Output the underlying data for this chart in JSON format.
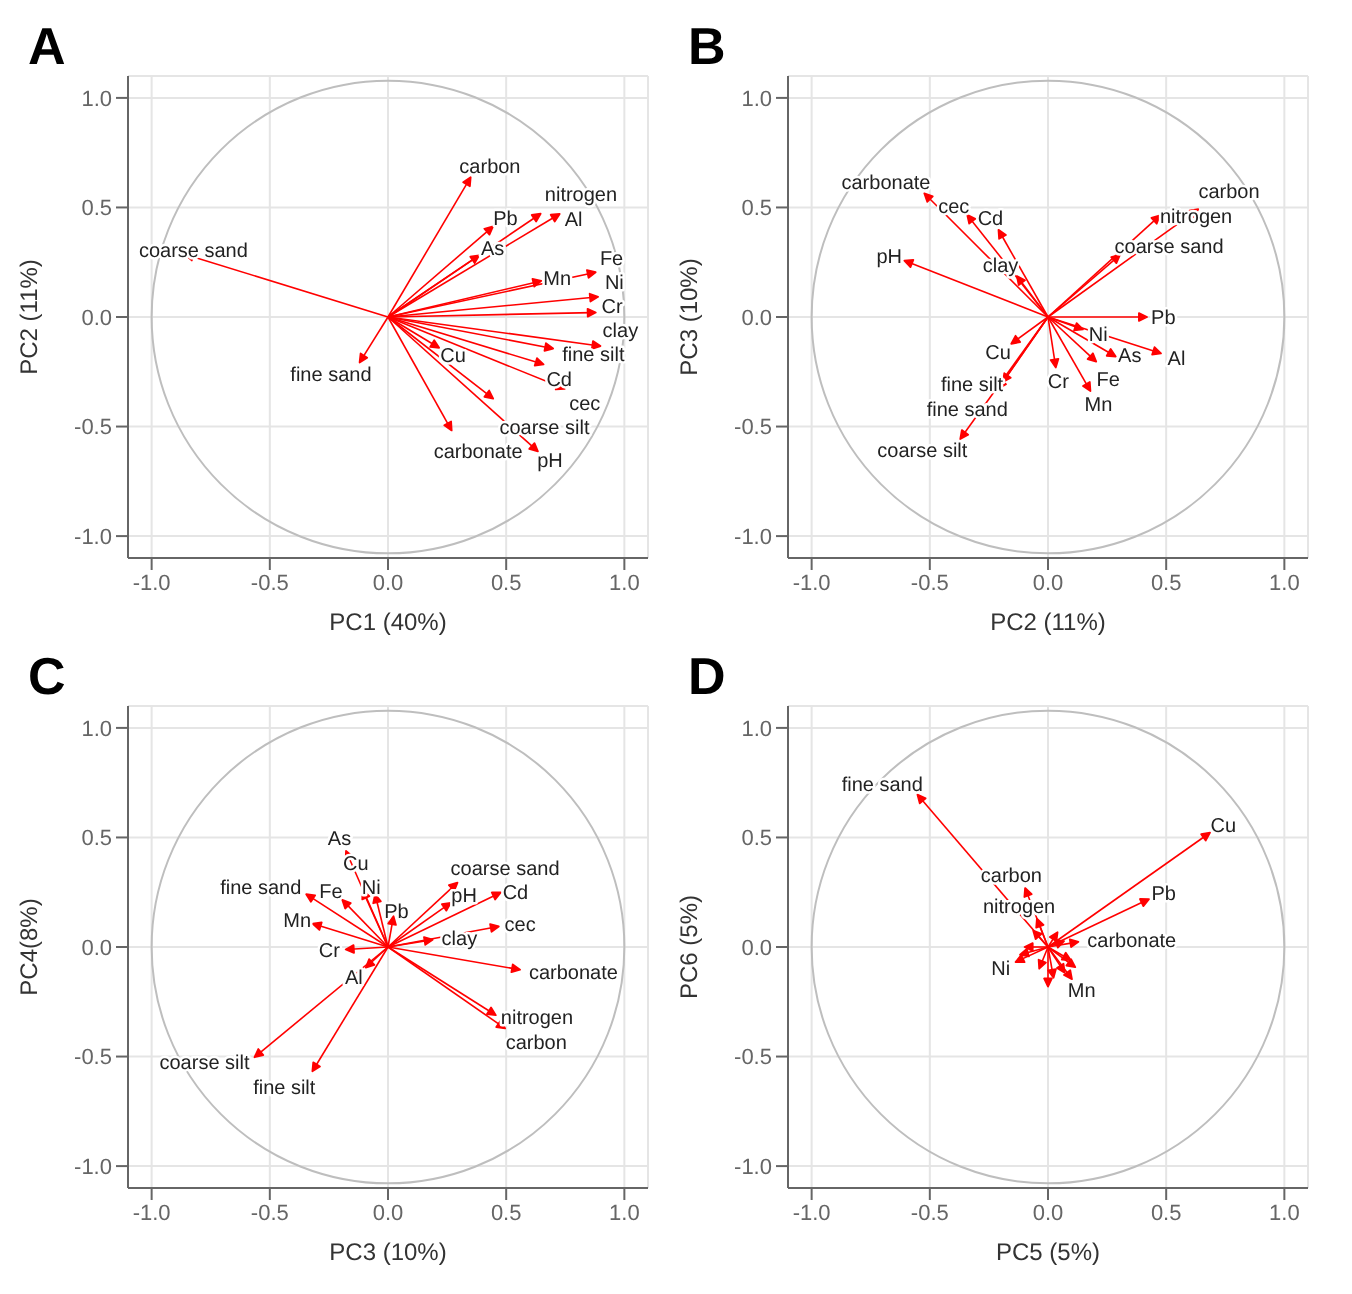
{
  "chart_data": [
    {
      "type": "scatter",
      "title": "A",
      "xlabel": "PC1 (40%)",
      "ylabel": "PC2 (11%)",
      "xlim": [
        -1.1,
        1.1
      ],
      "ylim": [
        -1.1,
        1.1
      ],
      "xticks": [
        {
          "value": -1,
          "label": "-1.0"
        },
        {
          "value": -0.5,
          "label": "-0.5"
        },
        {
          "value": 0,
          "label": "0.0"
        },
        {
          "value": 0.5,
          "label": "0.5"
        },
        {
          "value": 1,
          "label": "1.0"
        }
      ],
      "yticks": [
        {
          "value": -1,
          "label": "-1.0"
        },
        {
          "value": -0.5,
          "label": "-0.5"
        },
        {
          "value": 0,
          "label": "0.0"
        },
        {
          "value": 0.5,
          "label": "0.5"
        },
        {
          "value": 1,
          "label": "1.0"
        }
      ],
      "grid": true,
      "series": [
        {
          "color": "#ff0000",
          "x": [
            0.34,
            0.63,
            0.71,
            0.43,
            0.37,
            0.86,
            0.63,
            0.87,
            0.86,
            0.68,
            0.88,
            0.64,
            0.73,
            0.43,
            0.62,
            0.26,
            0.2,
            -0.11,
            -0.84
          ],
          "values": [
            0.62,
            0.46,
            0.46,
            0.4,
            0.27,
            0.2,
            0.16,
            0.09,
            0.02,
            -0.14,
            -0.13,
            -0.21,
            -0.32,
            -0.36,
            -0.6,
            -0.5,
            -0.13,
            -0.19,
            0.28
          ],
          "value_labels": [
            "carbon",
            "nitrogen",
            "Al",
            "Pb",
            "As",
            "Fe",
            "Mn",
            "Ni",
            "Cr",
            "fine silt",
            "clay",
            "Cd",
            "cec",
            "coarse silt",
            "pH",
            "carbonate",
            "Cu",
            "fine sand",
            "coarse sand"
          ]
        }
      ]
    },
    {
      "type": "scatter",
      "title": "B",
      "xlabel": "PC2 (11%)",
      "ylabel": "PC3 (10%)",
      "xlim": [
        -1.1,
        1.1
      ],
      "ylim": [
        -1.1,
        1.1
      ],
      "xticks": [
        {
          "value": -1,
          "label": "-1.0"
        },
        {
          "value": -0.5,
          "label": "-0.5"
        },
        {
          "value": 0,
          "label": "0.0"
        },
        {
          "value": 0.5,
          "label": "0.5"
        },
        {
          "value": 1,
          "label": "1.0"
        }
      ],
      "yticks": [
        {
          "value": -1,
          "label": "-1.0"
        },
        {
          "value": -0.5,
          "label": "-0.5"
        },
        {
          "value": 0,
          "label": "0.0"
        },
        {
          "value": 0.5,
          "label": "0.5"
        },
        {
          "value": 1,
          "label": "1.0"
        }
      ],
      "grid": true,
      "series": [
        {
          "color": "#ff0000",
          "x": [
            -0.51,
            -0.33,
            -0.2,
            -0.59,
            -0.12,
            0.62,
            0.46,
            0.29,
            0.4,
            0.46,
            0.27,
            0.13,
            0.19,
            0.17,
            0.03,
            -0.14,
            -0.18,
            -0.2,
            -0.36
          ],
          "values": [
            0.55,
            0.45,
            0.38,
            0.25,
            0.17,
            0.48,
            0.45,
            0.27,
            0,
            -0.16,
            -0.17,
            -0.05,
            -0.19,
            -0.32,
            -0.21,
            -0.11,
            -0.28,
            -0.31,
            -0.54
          ],
          "value_labels": [
            "carbonate",
            "cec",
            "Cd",
            "pH",
            "clay",
            "carbon",
            "nitrogen",
            "coarse sand",
            "Pb",
            "Al",
            "As",
            "Ni",
            "Fe",
            "Mn",
            "Cr",
            "Cu",
            "fine silt",
            "fine sand",
            "coarse silt"
          ]
        }
      ]
    },
    {
      "type": "scatter",
      "title": "C",
      "xlabel": "PC3 (10%)",
      "ylabel": "PC4(8%)",
      "xlim": [
        -1.1,
        1.1
      ],
      "ylim": [
        -1.1,
        1.1
      ],
      "xticks": [
        {
          "value": -1,
          "label": "-1.0"
        },
        {
          "value": -0.5,
          "label": "-0.5"
        },
        {
          "value": 0,
          "label": "0.0"
        },
        {
          "value": 0.5,
          "label": "0.5"
        },
        {
          "value": 1,
          "label": "1.0"
        }
      ],
      "yticks": [
        {
          "value": -1,
          "label": "-1.0"
        },
        {
          "value": -0.5,
          "label": "-0.5"
        },
        {
          "value": 0,
          "label": "0.0"
        },
        {
          "value": 0.5,
          "label": "0.5"
        },
        {
          "value": 1,
          "label": "1.0"
        }
      ],
      "grid": true,
      "series": [
        {
          "color": "#ff0000",
          "x": [
            -0.17,
            -0.1,
            -0.05,
            -0.33,
            -0.3,
            -0.18,
            -0.16,
            -0.08,
            0.02,
            0.28,
            0.46,
            0.25,
            0.45,
            0.17,
            0.54,
            0.44,
            0.48,
            -0.55,
            -0.31
          ],
          "values": [
            0.42,
            0.24,
            0.22,
            0.23,
            0.1,
            0.2,
            -0.01,
            -0.08,
            0.12,
            0.28,
            0.24,
            0.19,
            0.09,
            0.03,
            -0.1,
            -0.3,
            -0.36,
            -0.49,
            -0.55
          ],
          "value_labels": [
            "As",
            "Cu",
            "Ni",
            "fine sand",
            "Mn",
            "Fe",
            "Cr",
            "Al",
            "Pb",
            "coarse sand",
            "Cd",
            "pH",
            "cec",
            "clay",
            "carbonate",
            "nitrogen",
            "carbon",
            "coarse silt",
            "fine silt"
          ]
        }
      ]
    },
    {
      "type": "scatter",
      "title": "D",
      "xlabel": "PC5 (5%)",
      "ylabel": "PC6 (5%)",
      "xlim": [
        -1.1,
        1.1
      ],
      "ylim": [
        -1.1,
        1.1
      ],
      "xticks": [
        {
          "value": -1,
          "label": "-1.0"
        },
        {
          "value": -0.5,
          "label": "-0.5"
        },
        {
          "value": 0,
          "label": "0.0"
        },
        {
          "value": 0.5,
          "label": "0.5"
        },
        {
          "value": 1,
          "label": "1.0"
        }
      ],
      "yticks": [
        {
          "value": -1,
          "label": "-1.0"
        },
        {
          "value": -0.5,
          "label": "-0.5"
        },
        {
          "value": 0,
          "label": "0.0"
        },
        {
          "value": 0.5,
          "label": "0.5"
        },
        {
          "value": 1,
          "label": "1.0"
        }
      ],
      "grid": true,
      "series": [
        {
          "color": "#ff0000",
          "x": [
            -0.54,
            0.67,
            0.41,
            -0.09,
            -0.04,
            0.11,
            -0.12,
            0.09,
            -0.1,
            0,
            0.06,
            0.03,
            -0.05,
            0.08,
            0.02,
            -0.03,
            0.1,
            -0.08,
            0.05
          ],
          "values": [
            0.68,
            0.51,
            0.21,
            0.25,
            0.11,
            0.02,
            -0.06,
            -0.13,
            -0.03,
            -0.16,
            -0.1,
            0.05,
            0.06,
            -0.05,
            -0.12,
            -0.08,
            -0.08,
            0,
            0.02
          ],
          "value_labels": [
            "fine sand",
            "Cu",
            "Pb",
            "carbon",
            "nitrogen",
            "carbonate",
            "Ni",
            "Mn",
            null,
            null,
            null,
            null,
            null,
            null,
            null,
            null,
            null,
            null,
            null
          ]
        }
      ]
    }
  ]
}
